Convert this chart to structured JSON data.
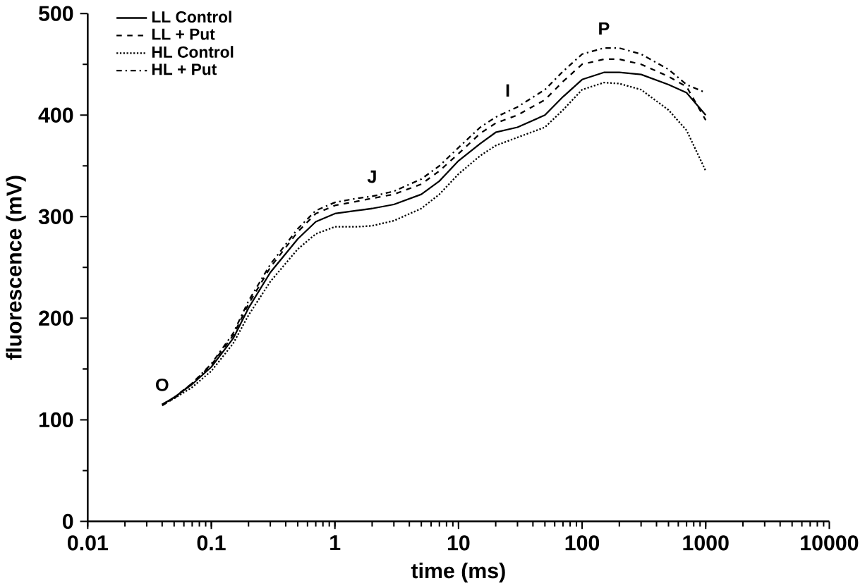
{
  "chart_data": {
    "type": "line",
    "xlabel": "time (ms)",
    "ylabel": "fluorescence (mV)",
    "log": "x",
    "xlim": [
      0.01,
      10000
    ],
    "xticks": [
      0.01,
      0.1,
      1,
      10,
      100,
      1000,
      10000
    ],
    "ylim": [
      0,
      500
    ],
    "yticks": [
      0,
      100,
      200,
      300,
      400,
      500
    ],
    "legend": "top left",
    "grid": false,
    "x": [
      0.04,
      0.05,
      0.07,
      0.1,
      0.15,
      0.2,
      0.3,
      0.5,
      0.7,
      1,
      1.5,
      2,
      3,
      5,
      7,
      10,
      15,
      20,
      30,
      50,
      70,
      100,
      150,
      200,
      300,
      500,
      700,
      1000
    ],
    "series": [
      {
        "name": "LL Control",
        "color": "#000000",
        "line_style": "solid",
        "values": [
          115,
          122,
          135,
          152,
          180,
          210,
          245,
          278,
          295,
          303,
          306,
          308,
          312,
          322,
          335,
          355,
          372,
          383,
          388,
          400,
          418,
          435,
          442,
          442,
          440,
          430,
          422,
          400
        ]
      },
      {
        "name": "LL + Put",
        "color": "#000000",
        "line_style": "dashed",
        "values": [
          115,
          122,
          136,
          154,
          183,
          214,
          250,
          285,
          303,
          311,
          315,
          318,
          322,
          332,
          345,
          362,
          382,
          392,
          400,
          415,
          433,
          450,
          455,
          455,
          450,
          438,
          428,
          395
        ]
      },
      {
        "name": "HL Control",
        "color": "#000000",
        "line_style": "dotted",
        "values": [
          115,
          121,
          132,
          148,
          175,
          203,
          236,
          268,
          283,
          290,
          290,
          291,
          296,
          308,
          322,
          342,
          360,
          370,
          378,
          388,
          405,
          425,
          432,
          431,
          425,
          405,
          385,
          345
        ]
      },
      {
        "name": "HL + Put",
        "color": "#000000",
        "line_style": "dashdotted",
        "values": [
          114,
          121,
          136,
          155,
          185,
          217,
          253,
          288,
          306,
          314,
          318,
          320,
          325,
          337,
          350,
          368,
          388,
          398,
          408,
          425,
          443,
          460,
          466,
          466,
          460,
          445,
          430,
          422
        ]
      }
    ],
    "annotations": [
      {
        "text": "O",
        "x": 0.04,
        "y": 115
      },
      {
        "text": "J",
        "x": 2,
        "y": 320
      },
      {
        "text": "I",
        "x": 25,
        "y": 405
      },
      {
        "text": "P",
        "x": 150,
        "y": 466
      }
    ]
  }
}
